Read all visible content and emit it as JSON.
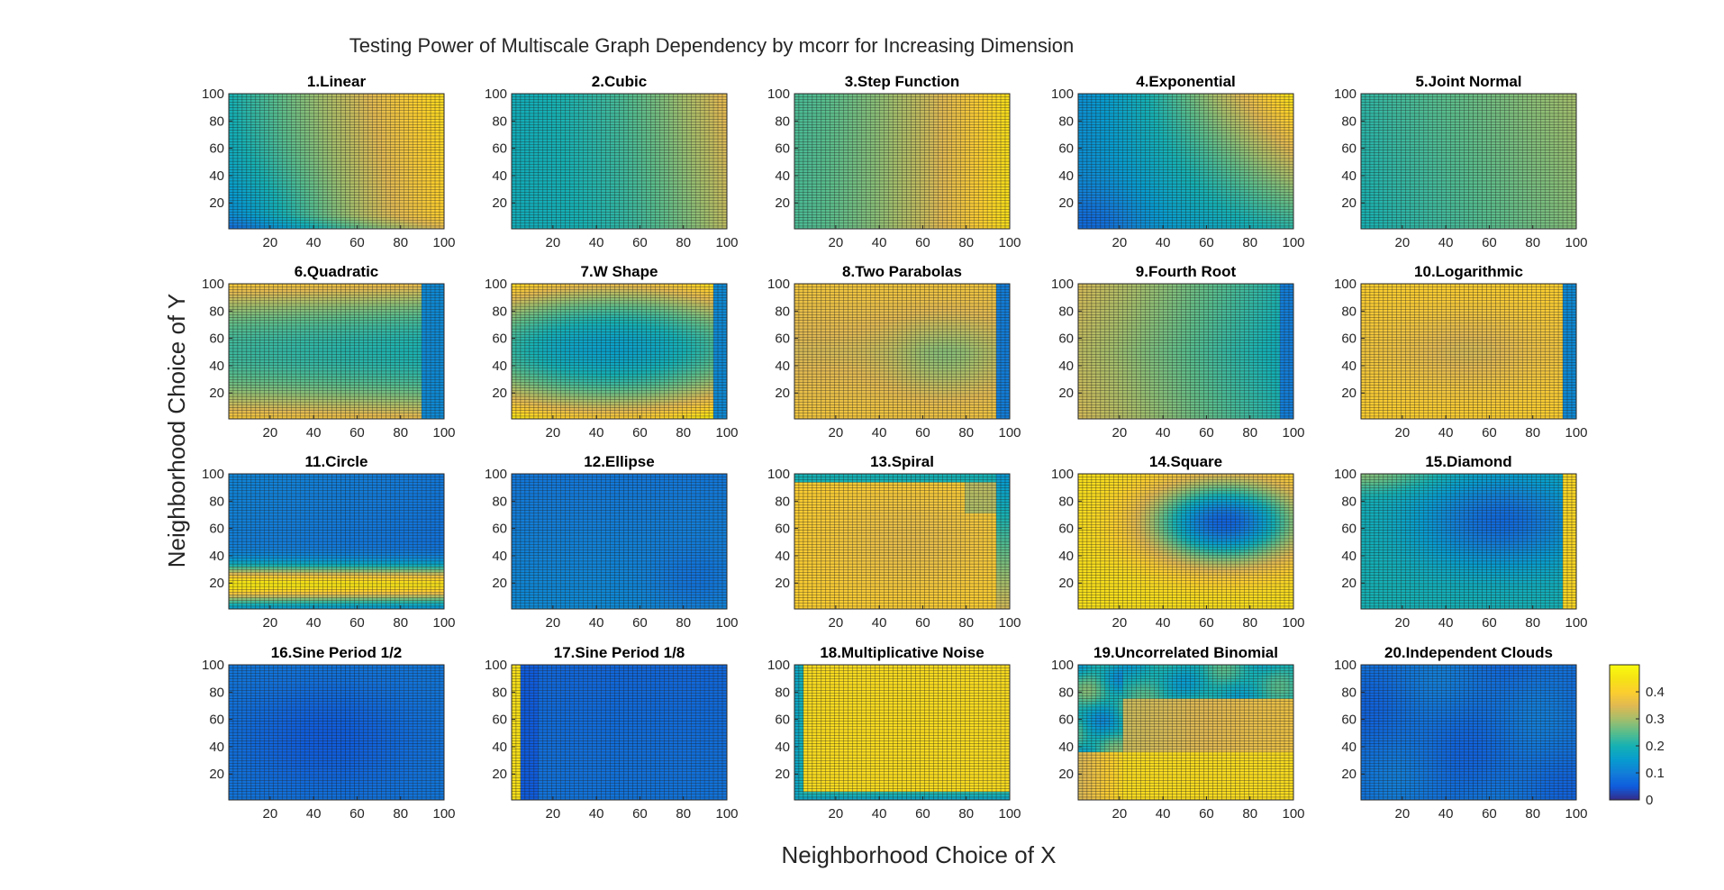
{
  "figure": {
    "title": "Testing Power of Multiscale Graph Dependency by mcorr for Increasing Dimension",
    "xlabel": "Neighborhood Choice of X",
    "ylabel": "Neighborhood Choice of Y"
  },
  "chart_data": {
    "type": "heatmap",
    "grid_lines": true,
    "colormap": "parula",
    "axis": {
      "x_range": [
        1,
        100
      ],
      "y_range": [
        1,
        100
      ],
      "x_ticks": [
        20,
        40,
        60,
        80,
        100
      ],
      "y_ticks": [
        20,
        40,
        60,
        80,
        100
      ],
      "x_tick_labels": [
        "20",
        "40",
        "60",
        "80",
        "100"
      ],
      "y_tick_labels": [
        "20",
        "40",
        "60",
        "80",
        "100"
      ]
    },
    "colorbar": {
      "range": [
        0,
        0.5
      ],
      "ticks": [
        0,
        0.1,
        0.2,
        0.3,
        0.4
      ],
      "tick_labels": [
        "0",
        "0.1",
        "0.2",
        "0.3",
        "0.4"
      ],
      "placement": "right of panel 20"
    },
    "panels": [
      {
        "title": "1.Linear",
        "pattern": "linear"
      },
      {
        "title": "2.Cubic",
        "pattern": "cubic"
      },
      {
        "title": "3.Step Function",
        "pattern": "step"
      },
      {
        "title": "4.Exponential",
        "pattern": "exponential"
      },
      {
        "title": "5.Joint Normal",
        "pattern": "joint_normal"
      },
      {
        "title": "6.Quadratic",
        "pattern": "quadratic"
      },
      {
        "title": "7.W Shape",
        "pattern": "w_shape"
      },
      {
        "title": "8.Two Parabolas",
        "pattern": "two_parabolas"
      },
      {
        "title": "9.Fourth Root",
        "pattern": "fourth_root"
      },
      {
        "title": "10.Logarithmic",
        "pattern": "logarithmic"
      },
      {
        "title": "11.Circle",
        "pattern": "circle"
      },
      {
        "title": "12.Ellipse",
        "pattern": "ellipse"
      },
      {
        "title": "13.Spiral",
        "pattern": "spiral"
      },
      {
        "title": "14.Square",
        "pattern": "square"
      },
      {
        "title": "15.Diamond",
        "pattern": "diamond"
      },
      {
        "title": "16.Sine Period 1/2",
        "pattern": "sine_half"
      },
      {
        "title": "17.Sine Period 1/8",
        "pattern": "sine_eighth"
      },
      {
        "title": "18.Multiplicative Noise",
        "pattern": "mult_noise"
      },
      {
        "title": "19.Uncorrelated Binomial",
        "pattern": "binomial"
      },
      {
        "title": "20.Independent Clouds",
        "pattern": "clouds"
      }
    ]
  }
}
